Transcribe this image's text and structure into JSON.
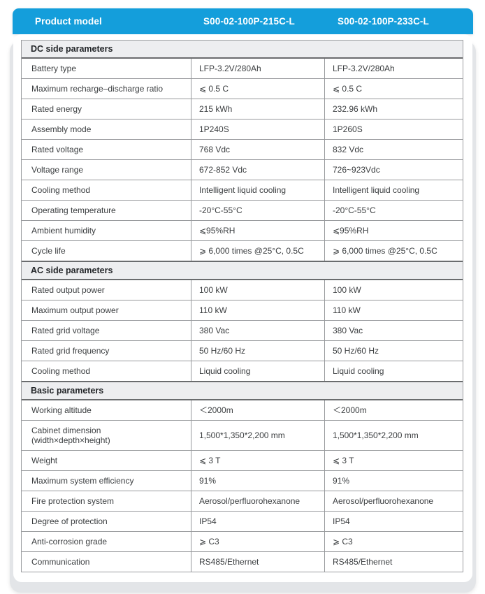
{
  "header": {
    "col_label": "Product model",
    "model_a": "S00-02-100P-215C-L",
    "model_b": "S00-02-100P-233C-L"
  },
  "colors": {
    "header_blue": "#149edb",
    "section_bg": "#edeef0",
    "backing_gray": "#e3e5e8",
    "line_gray": "#97999c"
  },
  "sections": [
    {
      "title": "DC side parameters",
      "rows": [
        {
          "label": "Battery type",
          "a": "LFP-3.2V/280Ah",
          "b": "LFP-3.2V/280Ah"
        },
        {
          "label": "Maximum recharge–discharge ratio",
          "a": "⩽ 0.5 C",
          "b": "⩽ 0.5 C"
        },
        {
          "label": "Rated energy",
          "a": "215 kWh",
          "b": "232.96 kWh"
        },
        {
          "label": "Assembly mode",
          "a": "1P240S",
          "b": "1P260S"
        },
        {
          "label": "Rated voltage",
          "a": "768 Vdc",
          "b": "832 Vdc"
        },
        {
          "label": "Voltage range",
          "a": "672-852 Vdc",
          "b": "726~923Vdc"
        },
        {
          "label": "Cooling method",
          "a": "Intelligent liquid cooling",
          "b": "Intelligent liquid cooling"
        },
        {
          "label": "Operating temperature",
          "a": "-20°C-55°C",
          "b": "-20°C-55°C"
        },
        {
          "label": "Ambient humidity",
          "a": "⩽95%RH",
          "b": "⩽95%RH"
        },
        {
          "label": "Cycle life",
          "a": "⩾ 6,000 times @25°C, 0.5C",
          "b": "⩾ 6,000 times @25°C, 0.5C"
        }
      ]
    },
    {
      "title": "AC side parameters",
      "rows": [
        {
          "label": "Rated output power",
          "a": "100 kW",
          "b": "100 kW"
        },
        {
          "label": "Maximum output power",
          "a": "110 kW",
          "b": "110 kW"
        },
        {
          "label": "Rated grid voltage",
          "a": "380 Vac",
          "b": "380 Vac"
        },
        {
          "label": "Rated grid frequency",
          "a": "50 Hz/60 Hz",
          "b": "50 Hz/60 Hz"
        },
        {
          "label": "Cooling method",
          "a": "Liquid cooling",
          "b": "Liquid cooling"
        }
      ]
    },
    {
      "title": "Basic parameters",
      "rows": [
        {
          "label": "Working altitude",
          "a": "＜2000m",
          "b": "＜2000m"
        },
        {
          "label": "Cabinet dimension\n(width×depth×height)",
          "a": "1,500*1,350*2,200 mm",
          "b": "1,500*1,350*2,200 mm"
        },
        {
          "label": "Weight",
          "a": "⩽ 3 T",
          "b": "⩽ 3 T"
        },
        {
          "label": "Maximum system efficiency",
          "a": "91%",
          "b": "91%"
        },
        {
          "label": "Fire protection system",
          "a": "Aerosol/perfluorohexanone",
          "b": "Aerosol/perfluorohexanone"
        },
        {
          "label": "Degree of protection",
          "a": "IP54",
          "b": "IP54"
        },
        {
          "label": "Anti-corrosion grade",
          "a": "⩾ C3",
          "b": "⩾ C3"
        },
        {
          "label": "Communication",
          "a": "RS485/Ethernet",
          "b": "RS485/Ethernet"
        }
      ]
    }
  ]
}
